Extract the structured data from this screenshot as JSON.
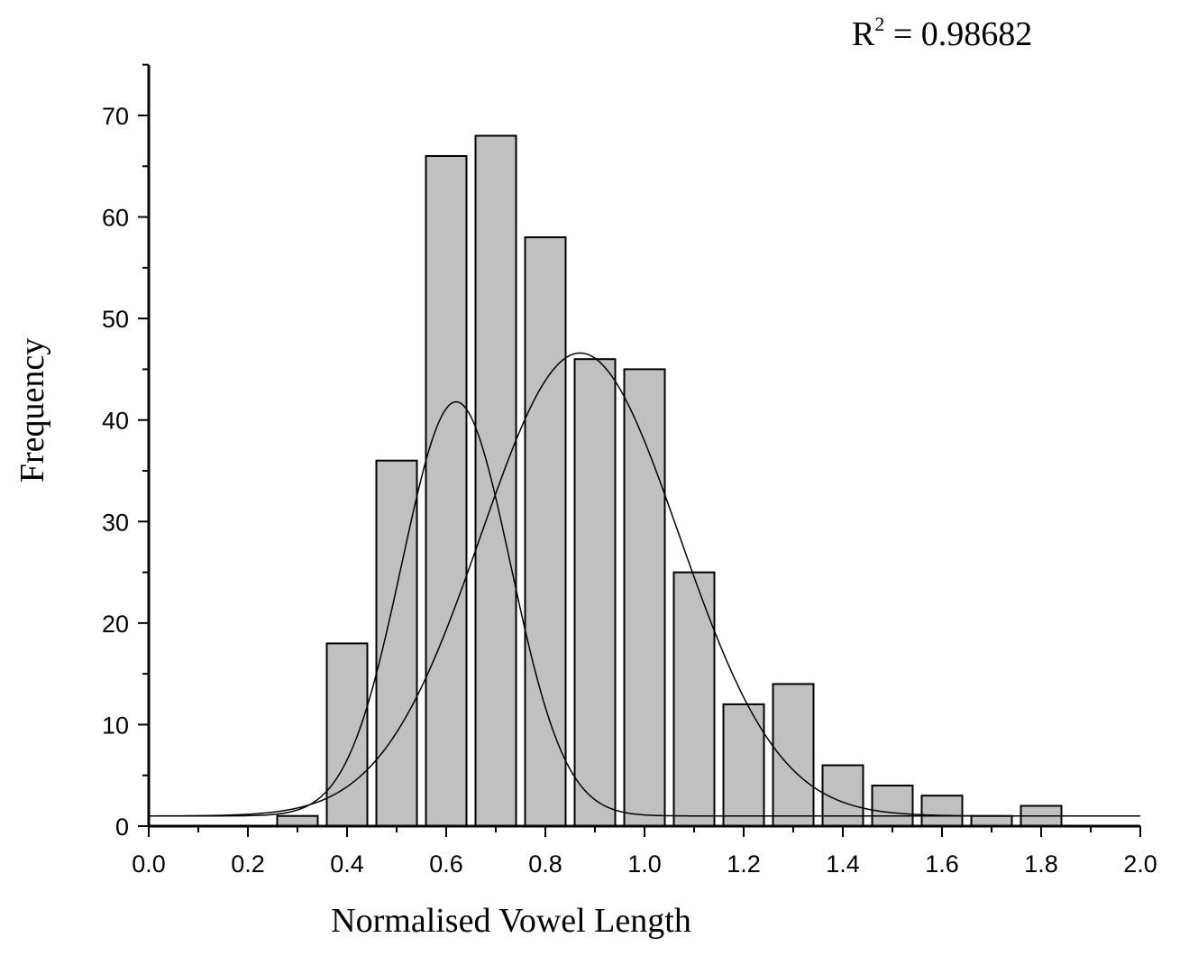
{
  "chart_data": {
    "type": "bar",
    "title": "",
    "xlabel": "Normalised Vowel Length",
    "ylabel": "Frequency",
    "annotation": {
      "base": "R",
      "superscript": "2",
      "rest": " = 0.98682"
    },
    "xlim": [
      0.0,
      2.0
    ],
    "ylim": [
      0,
      75
    ],
    "x_ticks": [
      "0.0",
      "0.2",
      "0.4",
      "0.6",
      "0.8",
      "1.0",
      "1.2",
      "1.4",
      "1.6",
      "1.8",
      "2.0"
    ],
    "y_ticks": [
      "0",
      "10",
      "20",
      "30",
      "40",
      "50",
      "60",
      "70"
    ],
    "bin_width": 0.1,
    "bars": [
      {
        "x": 0.3,
        "value": 1
      },
      {
        "x": 0.4,
        "value": 18
      },
      {
        "x": 0.5,
        "value": 36
      },
      {
        "x": 0.6,
        "value": 66
      },
      {
        "x": 0.7,
        "value": 68
      },
      {
        "x": 0.8,
        "value": 58
      },
      {
        "x": 0.9,
        "value": 46
      },
      {
        "x": 1.0,
        "value": 45
      },
      {
        "x": 1.1,
        "value": 25
      },
      {
        "x": 1.2,
        "value": 12
      },
      {
        "x": 1.3,
        "value": 14
      },
      {
        "x": 1.4,
        "value": 6
      },
      {
        "x": 1.5,
        "value": 4
      },
      {
        "x": 1.6,
        "value": 3
      },
      {
        "x": 1.7,
        "value": 1
      },
      {
        "x": 1.8,
        "value": 2
      }
    ],
    "fit_curves": [
      {
        "baseline": 1,
        "peak_x": 0.62,
        "peak_y": 41.8,
        "sigma": 0.11
      },
      {
        "baseline": 1,
        "peak_x": 0.87,
        "peak_y": 46.6,
        "sigma": 0.2
      }
    ],
    "bar_color": "#c0c0c0",
    "line_color": "#000000",
    "grid": false,
    "legend": "none"
  }
}
